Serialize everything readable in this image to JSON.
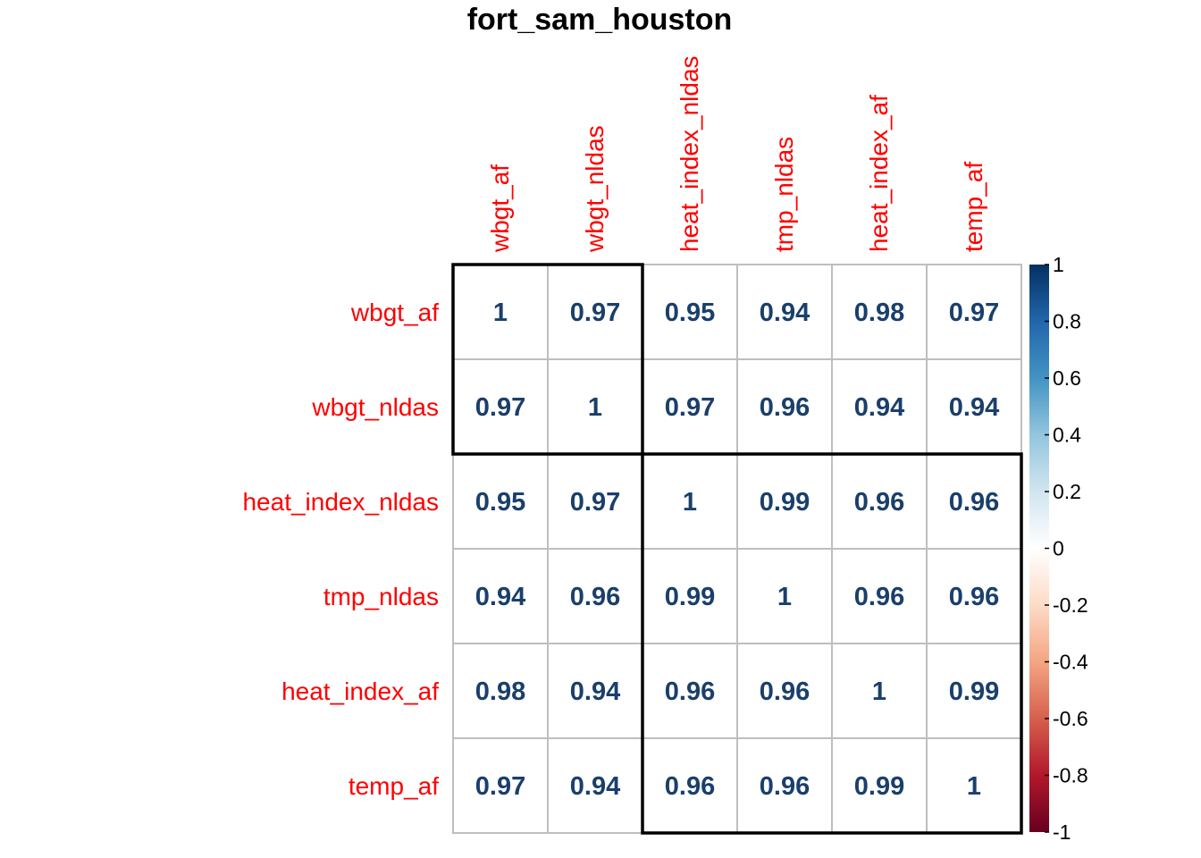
{
  "chart_data": {
    "type": "heatmap",
    "title": "fort_sam_houston",
    "variables": [
      "wbgt_af",
      "wbgt_nldas",
      "heat_index_nldas",
      "tmp_nldas",
      "heat_index_af",
      "temp_af"
    ],
    "matrix": [
      [
        1,
        0.97,
        0.95,
        0.94,
        0.98,
        0.97
      ],
      [
        0.97,
        1,
        0.97,
        0.96,
        0.94,
        0.94
      ],
      [
        0.95,
        0.97,
        1,
        0.99,
        0.96,
        0.96
      ],
      [
        0.94,
        0.96,
        0.99,
        1,
        0.96,
        0.96
      ],
      [
        0.98,
        0.94,
        0.96,
        0.96,
        1,
        0.99
      ],
      [
        0.97,
        0.94,
        0.96,
        0.96,
        0.99,
        1
      ]
    ],
    "cell_labels": [
      [
        "1",
        "0.97",
        "0.95",
        "0.94",
        "0.98",
        "0.97"
      ],
      [
        "0.97",
        "1",
        "0.97",
        "0.96",
        "0.94",
        "0.94"
      ],
      [
        "0.95",
        "0.97",
        "1",
        "0.99",
        "0.96",
        "0.96"
      ],
      [
        "0.94",
        "0.96",
        "0.99",
        "1",
        "0.96",
        "0.96"
      ],
      [
        "0.98",
        "0.94",
        "0.96",
        "0.96",
        "1",
        "0.99"
      ],
      [
        "0.97",
        "0.94",
        "0.96",
        "0.96",
        "0.99",
        "1"
      ]
    ],
    "clusters": [
      {
        "start": 0,
        "end": 1
      },
      {
        "start": 2,
        "end": 5
      }
    ],
    "colorbar": {
      "range": [
        -1,
        1
      ],
      "ticks": [
        "1",
        "0.8",
        "0.6",
        "0.4",
        "0.2",
        "0",
        "-0.2",
        "-0.4",
        "-0.6",
        "-0.8",
        "-1"
      ],
      "tick_values": [
        1,
        0.8,
        0.6,
        0.4,
        0.2,
        0,
        -0.2,
        -0.4,
        -0.6,
        -0.8,
        -1
      ],
      "colors_high_to_low": [
        "#053061",
        "#2166ac",
        "#4393c3",
        "#92c5de",
        "#d1e5f0",
        "#ffffff",
        "#fddbc7",
        "#f4a582",
        "#d6604d",
        "#b2182b",
        "#67001f"
      ]
    },
    "label_color": "#ff0000",
    "value_color": "#1a3f6b",
    "grid_color": "#bebebe",
    "cluster_outline_color": "#000000"
  }
}
